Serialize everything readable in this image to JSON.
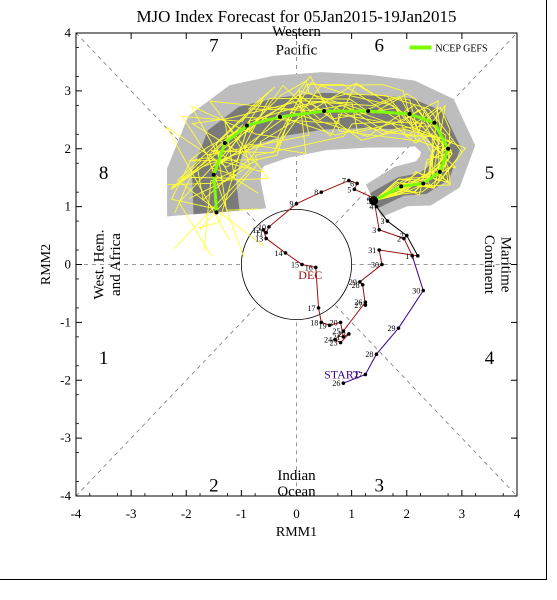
{
  "chart_data": {
    "type": "line",
    "title": "MJO Index Forecast for 05Jan2015-19Jan2015",
    "xlabel": "RMM1",
    "ylabel": "RMM2",
    "xlim": [
      -4,
      4
    ],
    "ylim": [
      -4,
      4
    ],
    "x_ticks": [
      "-4",
      "-3",
      "-2",
      "-1",
      "0",
      "1",
      "2",
      "3",
      "4"
    ],
    "y_ticks": [
      "4",
      "3",
      "2",
      "1",
      "0",
      "-1",
      "-2",
      "-3",
      "-4"
    ],
    "phase_numbers": [
      "1",
      "2",
      "3",
      "4",
      "5",
      "6",
      "7",
      "8"
    ],
    "region_labels": {
      "west_pacific": [
        "Western",
        "Pacific"
      ],
      "maritime": [
        "Maritime",
        "Continent"
      ],
      "indian": [
        "Indian",
        "Ocean"
      ],
      "west_hem": [
        "West. Hem.",
        "and Africa"
      ]
    },
    "legend": {
      "label": "NCEP GEFS",
      "color": "#7cfc00",
      "placement": "top-right"
    },
    "annotations": {
      "start": "START",
      "dec": "DEC"
    },
    "colors": {
      "nov": "#3c0096",
      "dec": "#a01010",
      "jan": "#000000",
      "ensemble": "#ffff33",
      "mean": "#7cfc00",
      "spread_outer": "#bdbdbd",
      "spread_inner": "#7a7a7a"
    },
    "series": [
      {
        "name": "Nov",
        "labels": [
          "26",
          "27",
          "28",
          "29",
          "30"
        ],
        "x": [
          0.85,
          1.25,
          1.45,
          1.85,
          2.3
        ],
        "y": [
          -2.05,
          -1.9,
          -1.55,
          -1.1,
          -0.45
        ]
      },
      {
        "name": "Dec",
        "labels": [
          "1",
          "2",
          "3",
          "4",
          "5",
          "6",
          "7",
          "8",
          "9",
          "10",
          "11",
          "12",
          "13",
          "14",
          "15",
          "16",
          "17",
          "18",
          "19",
          "20",
          "21",
          "22",
          "23",
          "24",
          "25",
          "26",
          "27",
          "28",
          "29",
          "30",
          "31"
        ],
        "x": [
          2.1,
          1.95,
          1.5,
          1.4,
          1.05,
          1.1,
          0.95,
          0.45,
          0.0,
          -0.5,
          -0.55,
          -0.6,
          -0.55,
          -0.2,
          0.1,
          0.35,
          0.4,
          0.45,
          0.6,
          0.8,
          0.85,
          0.95,
          0.8,
          0.7,
          0.85,
          1.25,
          1.25,
          1.2,
          1.15,
          1.55,
          1.5
        ],
        "y": [
          0.15,
          0.45,
          0.6,
          1.15,
          1.3,
          1.4,
          1.45,
          1.25,
          1.05,
          0.65,
          0.55,
          0.6,
          0.45,
          0.2,
          0.0,
          -0.05,
          -0.75,
          -1.0,
          -1.05,
          -1.0,
          -1.25,
          -1.2,
          -1.35,
          -1.3,
          -1.15,
          -0.65,
          -0.7,
          -0.35,
          -0.3,
          0.0,
          0.25
        ]
      },
      {
        "name": "Jan",
        "labels": [
          "1",
          "2",
          "3",
          "4",
          "5"
        ],
        "x": [
          2.2,
          2.0,
          1.65,
          1.45,
          1.4
        ],
        "y": [
          0.15,
          0.5,
          0.75,
          1.0,
          1.1
        ]
      },
      {
        "name": "NCEP GEFS",
        "labels": [],
        "x": [
          1.4,
          1.9,
          2.3,
          2.6,
          2.75,
          2.5,
          2.05,
          1.3,
          0.5,
          -0.3,
          -0.9,
          -1.3,
          -1.5,
          -1.45
        ],
        "y": [
          1.1,
          1.35,
          1.4,
          1.6,
          2.0,
          2.45,
          2.6,
          2.65,
          2.65,
          2.55,
          2.4,
          2.1,
          1.55,
          0.9
        ]
      }
    ]
  }
}
